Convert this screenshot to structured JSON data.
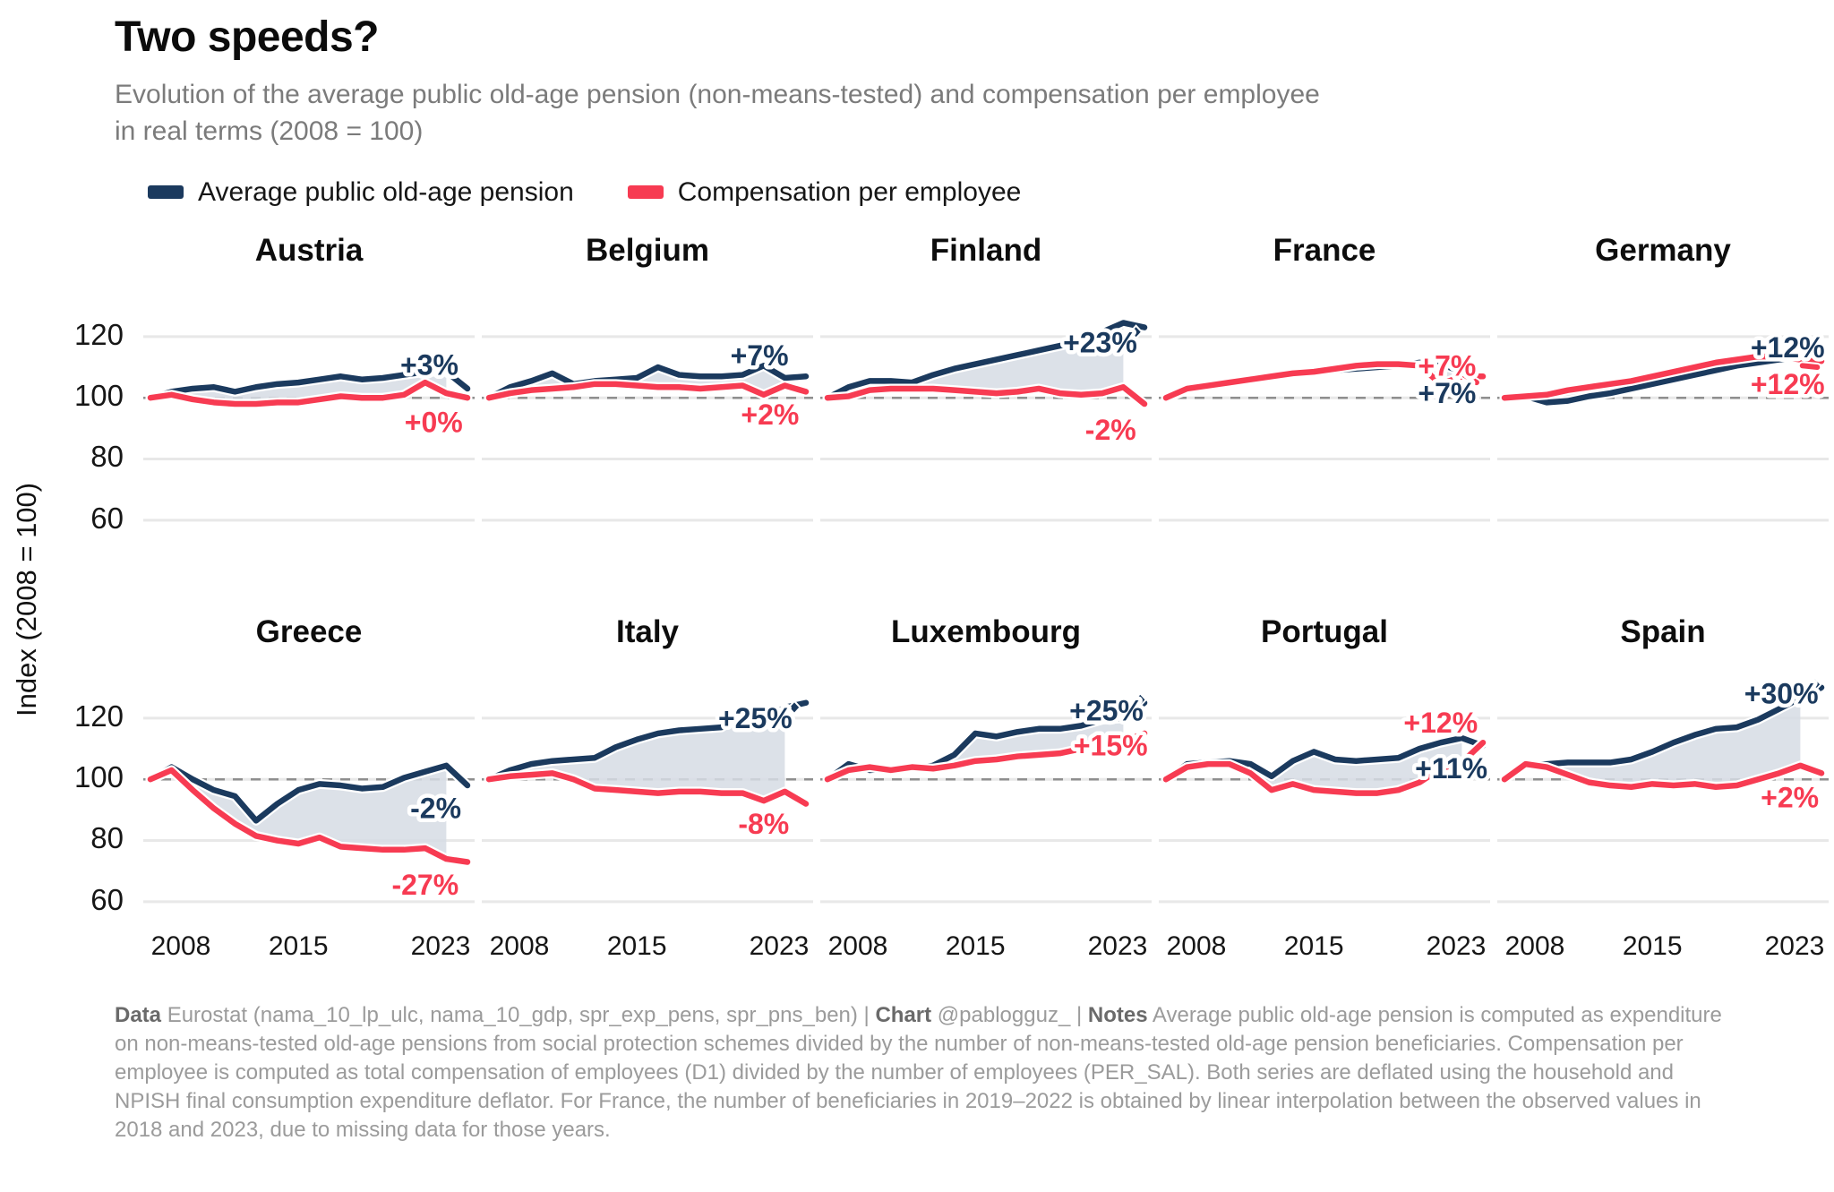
{
  "title": "Two speeds?",
  "subtitle": "Evolution of the average public old-age pension (non-means-tested) and compensation per employee in real terms (2008 = 100)",
  "colors": {
    "pension": "#1b3a5e",
    "compensation": "#f73b52",
    "fill_between": "#d6dce4",
    "gridline": "#e8e8e8",
    "baseline_dash": "#8f8f8f",
    "subtitle_gray": "#7b7b7b",
    "footer_gray": "#9b9b9b"
  },
  "legend": {
    "items": [
      {
        "label": "Average public old-age pension",
        "color": "#1b3a5e"
      },
      {
        "label": "Compensation per employee",
        "color": "#f73b52"
      }
    ]
  },
  "axis": {
    "ylabel": "Index (2008 = 100)",
    "yticks": [
      120,
      100,
      80,
      60
    ],
    "xticks": [
      2008,
      2015,
      2023
    ],
    "baseline": 100
  },
  "chart_data": {
    "type": "line",
    "x_years": [
      2008,
      2009,
      2010,
      2011,
      2012,
      2013,
      2014,
      2015,
      2016,
      2017,
      2018,
      2019,
      2020,
      2021,
      2022,
      2023
    ],
    "x_range": [
      2008,
      2023
    ],
    "y_range": [
      55,
      134
    ],
    "grid": true,
    "series_names": [
      "Average public old-age pension",
      "Compensation per employee"
    ],
    "countries": [
      {
        "name": "Austria",
        "pension": [
          100,
          102,
          103,
          103.5,
          102,
          103.5,
          104.5,
          105,
          106,
          107,
          106,
          106.5,
          107.5,
          108.5,
          108.5,
          103
        ],
        "compensation": [
          100,
          101,
          99.5,
          98.5,
          98,
          98,
          98.5,
          98.5,
          99.5,
          100.5,
          100,
          100,
          101,
          105,
          101.5,
          100
        ],
        "pension_label": "+3%",
        "compensation_label": "+0%",
        "pension_label_pos": {
          "x": 2021.2,
          "y": 110.8
        },
        "compensation_label_pos": {
          "x": 2021.4,
          "y": 92.0
        }
      },
      {
        "name": "Belgium",
        "pension": [
          100,
          103.5,
          105.5,
          108,
          104.5,
          105.5,
          106,
          106.5,
          110,
          107.5,
          107,
          107,
          107.5,
          110.5,
          106.5,
          107
        ],
        "compensation": [
          100,
          101.5,
          102.5,
          103,
          103.5,
          104.5,
          104.5,
          104,
          103.5,
          103.5,
          103,
          103.5,
          104,
          101,
          104,
          102
        ],
        "pension_label": "+7%",
        "compensation_label": "+2%",
        "pension_label_pos": {
          "x": 2020.8,
          "y": 113.8
        },
        "compensation_label_pos": {
          "x": 2021.3,
          "y": 94.5
        }
      },
      {
        "name": "Finland",
        "pension": [
          100,
          103.5,
          105.5,
          105.5,
          105,
          107.5,
          109.5,
          111,
          112.5,
          114,
          115.5,
          117,
          118.5,
          121.5,
          124.5,
          123
        ],
        "compensation": [
          100,
          100.5,
          102.5,
          103,
          103,
          103,
          102.5,
          102,
          101.5,
          102,
          103,
          101.5,
          101,
          101.5,
          103.5,
          98
        ],
        "pension_label": "+23%",
        "compensation_label": "-2%",
        "pension_label_pos": {
          "x": 2020.9,
          "y": 118.0
        },
        "compensation_label_pos": {
          "x": 2021.4,
          "y": 89.5
        },
        "pension_marker": {
          "x": 2022.6,
          "y": 121.5
        }
      },
      {
        "name": "France",
        "pension": [
          100,
          102.5,
          103.5,
          104.5,
          105.5,
          106.5,
          107.5,
          108.5,
          109,
          109.5,
          110,
          110.5,
          111.5,
          111,
          108.5,
          107
        ],
        "compensation": [
          100,
          103,
          104,
          105,
          106,
          107,
          108,
          108.5,
          109.5,
          110.5,
          111,
          111,
          110.5,
          104.5,
          107,
          107
        ],
        "pension_label": "+7%",
        "compensation_label": "+7%",
        "pension_label_pos": {
          "x": 2021.3,
          "y": 101.5
        },
        "compensation_label_pos": {
          "x": 2021.3,
          "y": 110.5
        },
        "compensation_dash": [
          [
            2022.1,
            107.5
          ],
          [
            2022.7,
            105.0
          ]
        ]
      },
      {
        "name": "Germany",
        "pension": [
          100,
          100.5,
          98.5,
          99,
          100.5,
          101.5,
          103,
          104.5,
          106,
          107.5,
          109,
          110.5,
          111.5,
          112.5,
          113,
          112
        ],
        "compensation": [
          100,
          100.5,
          101,
          102.5,
          103.5,
          104.5,
          105.5,
          107,
          108.5,
          110,
          111.5,
          112.5,
          113.5,
          113.5,
          112.5,
          112
        ],
        "pension_label": "+12%",
        "compensation_label": "+12%",
        "pension_label_pos": {
          "x": 2021.4,
          "y": 116.5
        },
        "compensation_label_pos": {
          "x": 2021.4,
          "y": 104.5
        },
        "compensation_dash": [
          [
            2022.1,
            110.5
          ],
          [
            2022.8,
            110.0
          ]
        ]
      },
      {
        "name": "Greece",
        "pension": [
          100,
          104,
          100,
          96.5,
          94.5,
          86.5,
          92,
          96.5,
          98.5,
          98,
          97,
          97.5,
          100.5,
          102.5,
          104.5,
          98
        ],
        "compensation": [
          100,
          103,
          96.5,
          90.5,
          85.5,
          81.5,
          80,
          79,
          81,
          78,
          77.5,
          77,
          77,
          77.5,
          74,
          73
        ],
        "pension_label": "-2%",
        "compensation_label": "-27%",
        "pension_label_pos": {
          "x": 2021.5,
          "y": 90.5
        },
        "compensation_label_pos": {
          "x": 2021.0,
          "y": 65.5
        }
      },
      {
        "name": "Italy",
        "pension": [
          100,
          103,
          105,
          106,
          106.5,
          107,
          110.5,
          113,
          115,
          116,
          116.5,
          117,
          121.5,
          119.5,
          123.5,
          125
        ],
        "compensation": [
          100,
          101,
          101.5,
          102,
          100,
          97,
          96.5,
          96,
          95.5,
          96,
          96,
          95.5,
          95.5,
          93,
          96,
          92
        ],
        "pension_label": "+25%",
        "compensation_label": "-8%",
        "pension_label_pos": {
          "x": 2020.6,
          "y": 120.0
        },
        "compensation_label_pos": {
          "x": 2021.0,
          "y": 85.5
        },
        "pension_marker": {
          "x": 2022.45,
          "y": 123.5
        }
      },
      {
        "name": "Luxembourg",
        "pension": [
          100,
          105,
          103,
          103.5,
          103.5,
          104.5,
          108,
          115,
          114,
          115.5,
          116.5,
          116.5,
          117.5,
          119.5,
          120,
          125
        ],
        "compensation": [
          100,
          103,
          104,
          103,
          104,
          103.5,
          104.5,
          106,
          106.5,
          107.5,
          108,
          108.5,
          110,
          111.5,
          112.5,
          115
        ],
        "pension_label": "+25%",
        "compensation_label": "+15%",
        "pension_label_pos": {
          "x": 2021.2,
          "y": 122.5
        },
        "compensation_label_pos": {
          "x": 2021.4,
          "y": 111.0
        },
        "pension_marker": {
          "x": 2022.8,
          "y": 126.0
        }
      },
      {
        "name": "Portugal",
        "pension": [
          100,
          105,
          105.5,
          106,
          105,
          101,
          106,
          109,
          106.5,
          106,
          106.5,
          107,
          110,
          112,
          113.5,
          111
        ],
        "compensation": [
          100,
          104,
          105,
          105,
          102,
          96.5,
          98.5,
          96.5,
          96,
          95.5,
          95.5,
          96.5,
          99,
          103.5,
          105.5,
          112
        ],
        "pension_label": "+11%",
        "compensation_label": "+12%",
        "pension_label_pos": {
          "x": 2021.5,
          "y": 103.5
        },
        "compensation_label_pos": {
          "x": 2021.0,
          "y": 118.5
        }
      },
      {
        "name": "Spain",
        "pension": [
          100,
          104.5,
          105,
          105.5,
          105.5,
          105.5,
          106.5,
          109,
          112,
          114.5,
          116.5,
          117,
          119.5,
          123,
          126.5,
          130
        ],
        "compensation": [
          100,
          105,
          104,
          101.5,
          99,
          98,
          97.5,
          98.5,
          98,
          98.5,
          97.5,
          98,
          100,
          102,
          104.5,
          102
        ],
        "pension_label": "+30%",
        "compensation_label": "+2%",
        "pension_label_pos": {
          "x": 2021.1,
          "y": 128.0
        },
        "compensation_label_pos": {
          "x": 2021.5,
          "y": 94.0
        },
        "pension_marker": {
          "x": 2022.7,
          "y": 131.0
        }
      }
    ]
  },
  "footer": {
    "segments": [
      {
        "text": "Data",
        "bold": true
      },
      {
        "text": " Eurostat (nama_10_lp_ulc, nama_10_gdp, spr_exp_pens, spr_pns_ben) | ",
        "bold": false
      },
      {
        "text": "Chart",
        "bold": true
      },
      {
        "text": " @pablogguz_ | ",
        "bold": false
      },
      {
        "text": "Notes",
        "bold": true
      },
      {
        "text": " Average public old-age pension is computed as expenditure on non-means-tested old-age pensions from social protection schemes divided by the number of non-means-tested old-age pension beneficiaries. Compensation per employee is computed as total compensation of employees (D1) divided by the number of employees (PER_SAL). Both series are deflated using the household and NPISH final consumption expenditure deflator. For France, the number of beneficiaries in 2019–2022 is obtained by linear interpolation between the observed values in 2018 and 2023, due to missing data for those years.",
        "bold": false
      }
    ]
  }
}
